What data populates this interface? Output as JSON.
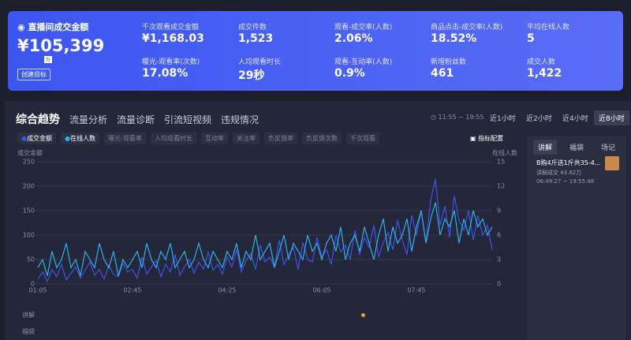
{
  "header": {
    "title": "直播间成交金额",
    "value": "¥105,399",
    "unit": "万",
    "button": "创建目标",
    "metrics": [
      {
        "label": "千次观看成交金额",
        "value": "¥1,168.03"
      },
      {
        "label": "成交件数",
        "value": "1,523"
      },
      {
        "label": "观看-成交率(人数)",
        "value": "2.06%"
      },
      {
        "label": "商品点击-成交率(人数)",
        "value": "18.52%"
      },
      {
        "label": "平均在线人数",
        "value": "5"
      },
      {
        "label": "曝光-观看率(次数)",
        "value": "17.08%"
      },
      {
        "label": "人均观看时长",
        "value": "29秒"
      },
      {
        "label": "观看-互动率(人数)",
        "value": "0.9%"
      },
      {
        "label": "新增粉丝数",
        "value": "461"
      },
      {
        "label": "成交人数",
        "value": "1,422"
      }
    ]
  },
  "tabs": [
    "综合趋势",
    "流量分析",
    "流量诊断",
    "引流短视频",
    "违规情况"
  ],
  "time_range": "11:55 ~ 19:55",
  "range_buttons": [
    "近1小时",
    "近2小时",
    "近4小时",
    "近8小时"
  ],
  "metric_chips": [
    "曝光-观看率",
    "人均观看时长",
    "互动率",
    "关注率",
    "负反馈率",
    "负反馈次数",
    "千次观看"
  ],
  "config_button": "指标配置",
  "side_panel": {
    "tabs": [
      "讲解",
      "福袋",
      "场记"
    ],
    "item_title": "B购4斤送1斤共35-4...",
    "item_sales": "讲解成交 ¥3.82万",
    "item_time": "06:49:27 ~ 19:55:48"
  },
  "bottom_rows": [
    "讲解",
    "福袋"
  ],
  "chart_data": {
    "type": "line",
    "y_label": "成交金额",
    "y2_label": "在线人数",
    "categories": [
      "01:05",
      null,
      null,
      null,
      null,
      null,
      null,
      null,
      null,
      null,
      null,
      null,
      null,
      null,
      null,
      null,
      null,
      null,
      null,
      null,
      "02:45",
      null,
      null,
      null,
      null,
      null,
      null,
      null,
      null,
      null,
      null,
      null,
      null,
      null,
      null,
      null,
      null,
      null,
      null,
      null,
      "04:25",
      null,
      null,
      null,
      null,
      null,
      null,
      null,
      null,
      null,
      null,
      null,
      null,
      null,
      null,
      null,
      null,
      null,
      null,
      null,
      "06:05",
      null,
      null,
      null,
      null,
      null,
      null,
      null,
      null,
      null,
      null,
      null,
      null,
      null,
      null,
      null,
      null,
      null,
      null,
      null,
      "07:45",
      null,
      null,
      null,
      null,
      null,
      null,
      null,
      null,
      null,
      null,
      null,
      null,
      null,
      null,
      null,
      null
    ],
    "ylim": [
      0,
      250
    ],
    "yticks": [
      0,
      50,
      100,
      150,
      200,
      250
    ],
    "y2lim": [
      0,
      15
    ],
    "y2ticks": [
      0,
      3,
      6,
      9,
      12,
      15
    ],
    "grid": true,
    "series": [
      {
        "name": "成交金额",
        "color": "#3f51e6",
        "values": [
          10,
          25,
          5,
          30,
          15,
          40,
          8,
          22,
          35,
          12,
          28,
          45,
          18,
          30,
          10,
          38,
          20,
          15,
          42,
          25,
          30,
          12,
          55,
          20,
          35,
          48,
          15,
          40,
          25,
          60,
          18,
          35,
          50,
          22,
          45,
          30,
          65,
          28,
          40,
          20,
          55,
          35,
          70,
          25,
          48,
          62,
          30,
          80,
          45,
          55,
          35,
          90,
          40,
          60,
          75,
          30,
          85,
          50,
          45,
          95,
          55,
          70,
          40,
          100,
          65,
          80,
          50,
          110,
          60,
          95,
          75,
          120,
          55,
          85,
          105,
          70,
          130,
          90,
          60,
          140,
          100,
          150,
          85,
          170,
          215,
          120,
          160,
          95,
          180,
          130,
          110,
          150,
          90,
          140,
          100,
          120,
          70
        ]
      },
      {
        "name": "在线人数",
        "color": "#2fb0e8",
        "axis": "y2",
        "values": [
          2,
          3,
          1,
          4,
          2,
          3,
          5,
          2,
          3,
          1,
          4,
          3,
          2,
          5,
          3,
          2,
          4,
          1,
          3,
          2,
          3,
          4,
          2,
          5,
          3,
          2,
          4,
          3,
          5,
          2,
          3,
          4,
          2,
          3,
          5,
          3,
          2,
          4,
          3,
          2,
          4,
          3,
          5,
          2,
          4,
          3,
          6,
          3,
          4,
          5,
          2,
          4,
          6,
          3,
          5,
          4,
          3,
          6,
          4,
          5,
          3,
          5,
          6,
          4,
          7,
          3,
          5,
          6,
          4,
          7,
          5,
          3,
          6,
          8,
          4,
          7,
          5,
          6,
          8,
          4,
          7,
          9,
          5,
          8,
          10,
          6,
          8,
          7,
          9,
          5,
          8,
          6,
          9,
          7,
          8,
          6,
          7
        ]
      }
    ]
  }
}
